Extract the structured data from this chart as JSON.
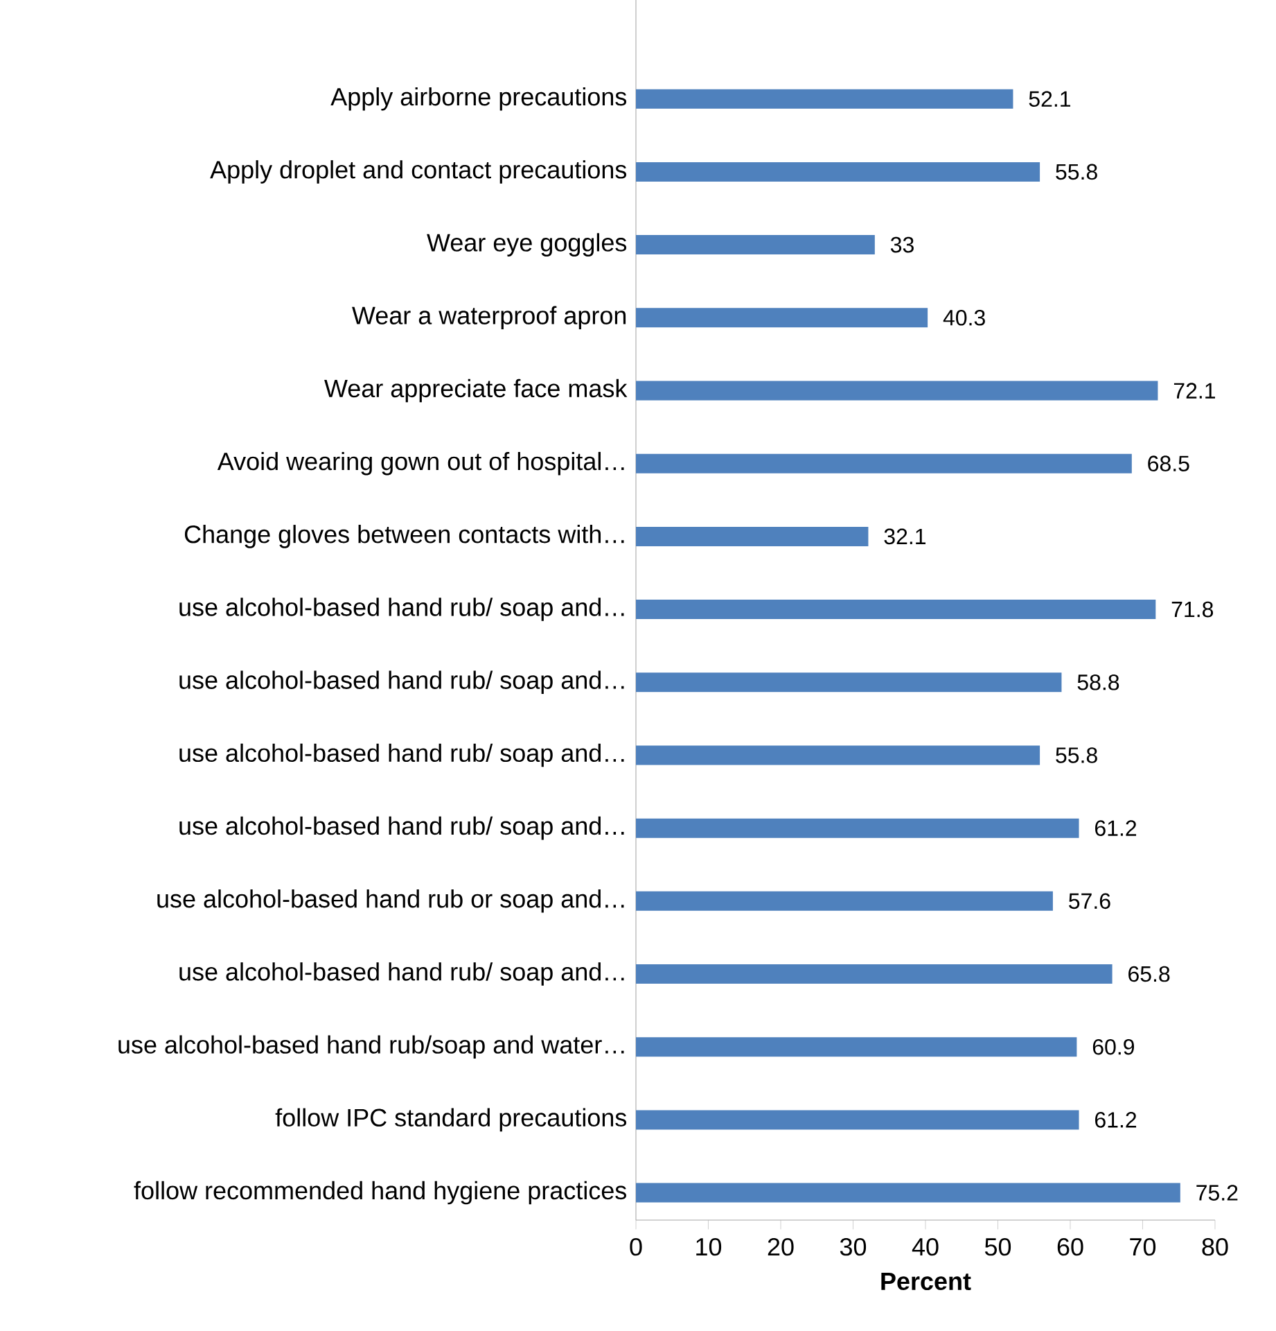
{
  "chart_data": {
    "type": "bar",
    "orientation": "horizontal",
    "xlabel": "Percent",
    "categories": [
      "Apply airborne precautions",
      "Apply droplet and contact precautions",
      "Wear eye goggles",
      "Wear a waterproof apron",
      "Wear appreciate face mask",
      "Avoid wearing  gown out of hospital…",
      "Change gloves between contacts with…",
      "use alcohol-based hand rub/ soap and…",
      "use alcohol-based hand rub/ soap and…",
      "use alcohol-based hand rub/ soap and…",
      "use alcohol-based hand rub/ soap and…",
      "use alcohol-based hand rub or soap and…",
      "use alcohol-based hand rub/ soap and…",
      "use alcohol-based hand rub/soap and water…",
      "follow IPC standard precautions",
      "follow recommended hand hygiene practices"
    ],
    "values": [
      52.1,
      55.8,
      33,
      40.3,
      72.1,
      68.5,
      32.1,
      71.8,
      58.8,
      55.8,
      61.2,
      57.6,
      65.8,
      60.9,
      61.2,
      75.2
    ],
    "color": "#4f81bd",
    "data_labels": true,
    "xlim": [
      0,
      80
    ],
    "xticks": [
      0,
      10,
      20,
      30,
      40,
      50,
      60,
      70,
      80
    ]
  }
}
